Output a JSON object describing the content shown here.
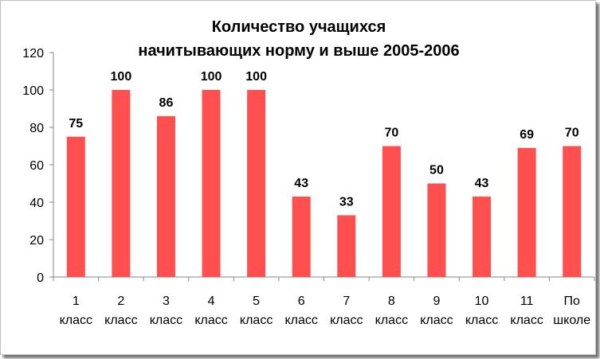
{
  "chart_data": {
    "type": "bar",
    "title_lines": [
      "Количество  учащихся",
      "начитывающих норму и выше  2005-2006"
    ],
    "categories": [
      [
        "1",
        "класс"
      ],
      [
        "2",
        "класс"
      ],
      [
        "3",
        "класс"
      ],
      [
        "4",
        "класс"
      ],
      [
        "5",
        "класс"
      ],
      [
        "6",
        "класс"
      ],
      [
        "7",
        "класс"
      ],
      [
        "8",
        "класс"
      ],
      [
        "9",
        "класс"
      ],
      [
        "10",
        "класс"
      ],
      [
        "11",
        "класс"
      ],
      [
        "По",
        "школе"
      ]
    ],
    "values": [
      75,
      100,
      86,
      100,
      100,
      43,
      33,
      70,
      50,
      43,
      69,
      70
    ],
    "data_labels": [
      "75",
      "100",
      "86",
      "100",
      "100",
      "43",
      "33",
      "70",
      "50",
      "43",
      "69",
      "70"
    ],
    "ylim": [
      0,
      120
    ],
    "yticks": [
      "0",
      "20",
      "40",
      "60",
      "80",
      "100",
      "120"
    ],
    "grid": false,
    "legend": "none",
    "bar_color": "#ff4f4f"
  }
}
